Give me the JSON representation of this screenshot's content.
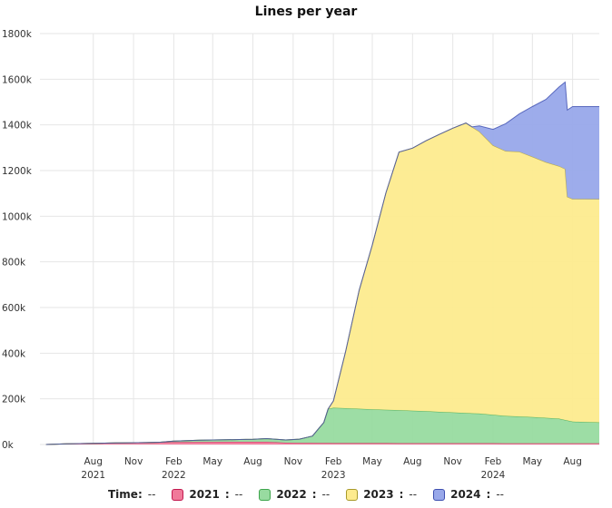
{
  "chart_data": {
    "type": "area",
    "title": "Lines per year",
    "stacked": true,
    "x_axis": {
      "range": [
        "2021-04",
        "2024-10"
      ],
      "ticks": [
        {
          "date": "2021-08",
          "month": "Aug",
          "year": "2021"
        },
        {
          "date": "2021-11",
          "month": "Nov",
          "year": ""
        },
        {
          "date": "2022-02",
          "month": "Feb",
          "year": "2022"
        },
        {
          "date": "2022-05",
          "month": "May",
          "year": ""
        },
        {
          "date": "2022-08",
          "month": "Aug",
          "year": ""
        },
        {
          "date": "2022-11",
          "month": "Nov",
          "year": ""
        },
        {
          "date": "2023-02",
          "month": "Feb",
          "year": "2023"
        },
        {
          "date": "2023-05",
          "month": "May",
          "year": ""
        },
        {
          "date": "2023-08",
          "month": "Aug",
          "year": ""
        },
        {
          "date": "2023-11",
          "month": "Nov",
          "year": ""
        },
        {
          "date": "2024-02",
          "month": "Feb",
          "year": "2024"
        },
        {
          "date": "2024-05",
          "month": "May",
          "year": ""
        },
        {
          "date": "2024-08",
          "month": "Aug",
          "year": ""
        }
      ]
    },
    "y_axis": {
      "range": [
        0,
        1800000
      ],
      "ticks": [
        0,
        200000,
        400000,
        600000,
        800000,
        1000000,
        1200000,
        1400000,
        1600000,
        1800000
      ],
      "tick_labels": [
        "0k",
        "200k",
        "400k",
        "600k",
        "800k",
        "1000k",
        "1200k",
        "1400k",
        "1600k",
        "1800k"
      ]
    },
    "grid": true,
    "legend_position": "bottom",
    "legend_prefix": "Time:",
    "legend_prefix_value": "--",
    "series": [
      {
        "name": "2021",
        "value_label": "--",
        "color": "#f07a9a",
        "line": "#c2184f",
        "points": [
          [
            "2021-04-15",
            0
          ],
          [
            "2021-06-01",
            3000
          ],
          [
            "2021-08-01",
            5000
          ],
          [
            "2021-10-01",
            7000
          ],
          [
            "2021-12-01",
            8500
          ],
          [
            "2022-02-01",
            11000
          ],
          [
            "2022-04-01",
            11500
          ],
          [
            "2022-07-01",
            12000
          ],
          [
            "2022-09-01",
            12000
          ],
          [
            "2022-10-15",
            8000
          ],
          [
            "2022-12-01",
            7000
          ],
          [
            "2023-02-01",
            6000
          ],
          [
            "2024-10-01",
            5000
          ]
        ]
      },
      {
        "name": "2022",
        "value_label": "--",
        "color": "#98dba0",
        "line": "#3ea54c",
        "points": [
          [
            "2021-04-15",
            0
          ],
          [
            "2022-01-01",
            0
          ],
          [
            "2022-02-01",
            4000
          ],
          [
            "2022-04-01",
            7000
          ],
          [
            "2022-06-01",
            9000
          ],
          [
            "2022-08-01",
            11000
          ],
          [
            "2022-09-01",
            14000
          ],
          [
            "2022-10-15",
            12000
          ],
          [
            "2022-11-15",
            16000
          ],
          [
            "2022-12-15",
            30000
          ],
          [
            "2023-01-10",
            90000
          ],
          [
            "2023-01-20",
            150000
          ],
          [
            "2023-02-01",
            155000
          ],
          [
            "2023-03-01",
            153000
          ],
          [
            "2023-05-01",
            148000
          ],
          [
            "2023-07-01",
            145000
          ],
          [
            "2023-09-01",
            140000
          ],
          [
            "2023-11-01",
            135000
          ],
          [
            "2024-01-01",
            130000
          ],
          [
            "2024-03-01",
            120000
          ],
          [
            "2024-05-01",
            115000
          ],
          [
            "2024-07-01",
            108000
          ],
          [
            "2024-08-01",
            95000
          ],
          [
            "2024-10-01",
            92000
          ]
        ]
      },
      {
        "name": "2023",
        "value_label": "--",
        "color": "#fdeb8e",
        "line": "#a89a2a",
        "points": [
          [
            "2021-04-15",
            0
          ],
          [
            "2023-01-01",
            0
          ],
          [
            "2023-01-20",
            0
          ],
          [
            "2023-02-01",
            30000
          ],
          [
            "2023-03-01",
            250000
          ],
          [
            "2023-04-01",
            520000
          ],
          [
            "2023-05-01",
            720000
          ],
          [
            "2023-06-01",
            950000
          ],
          [
            "2023-07-01",
            1130000
          ],
          [
            "2023-08-01",
            1150000
          ],
          [
            "2023-09-01",
            1185000
          ],
          [
            "2023-10-01",
            1215000
          ],
          [
            "2023-11-01",
            1245000
          ],
          [
            "2023-12-01",
            1270000
          ],
          [
            "2024-01-01",
            1235000
          ],
          [
            "2024-02-01",
            1180000
          ],
          [
            "2024-03-01",
            1160000
          ],
          [
            "2024-04-01",
            1160000
          ],
          [
            "2024-05-01",
            1140000
          ],
          [
            "2024-06-01",
            1120000
          ],
          [
            "2024-07-15",
            1100000
          ],
          [
            "2024-07-20",
            980000
          ],
          [
            "2024-08-01",
            975000
          ],
          [
            "2024-10-01",
            978000
          ]
        ]
      },
      {
        "name": "2024",
        "value_label": "--",
        "color": "#98a8ea",
        "line": "#3d4fb0",
        "points": [
          [
            "2021-04-15",
            0
          ],
          [
            "2023-12-15",
            0
          ],
          [
            "2024-01-01",
            25000
          ],
          [
            "2024-02-01",
            70000
          ],
          [
            "2024-03-01",
            120000
          ],
          [
            "2024-04-01",
            165000
          ],
          [
            "2024-05-01",
            220000
          ],
          [
            "2024-06-01",
            275000
          ],
          [
            "2024-07-15",
            380000
          ],
          [
            "2024-07-20",
            380000
          ],
          [
            "2024-08-01",
            405000
          ],
          [
            "2024-10-01",
            405000
          ]
        ]
      }
    ]
  }
}
